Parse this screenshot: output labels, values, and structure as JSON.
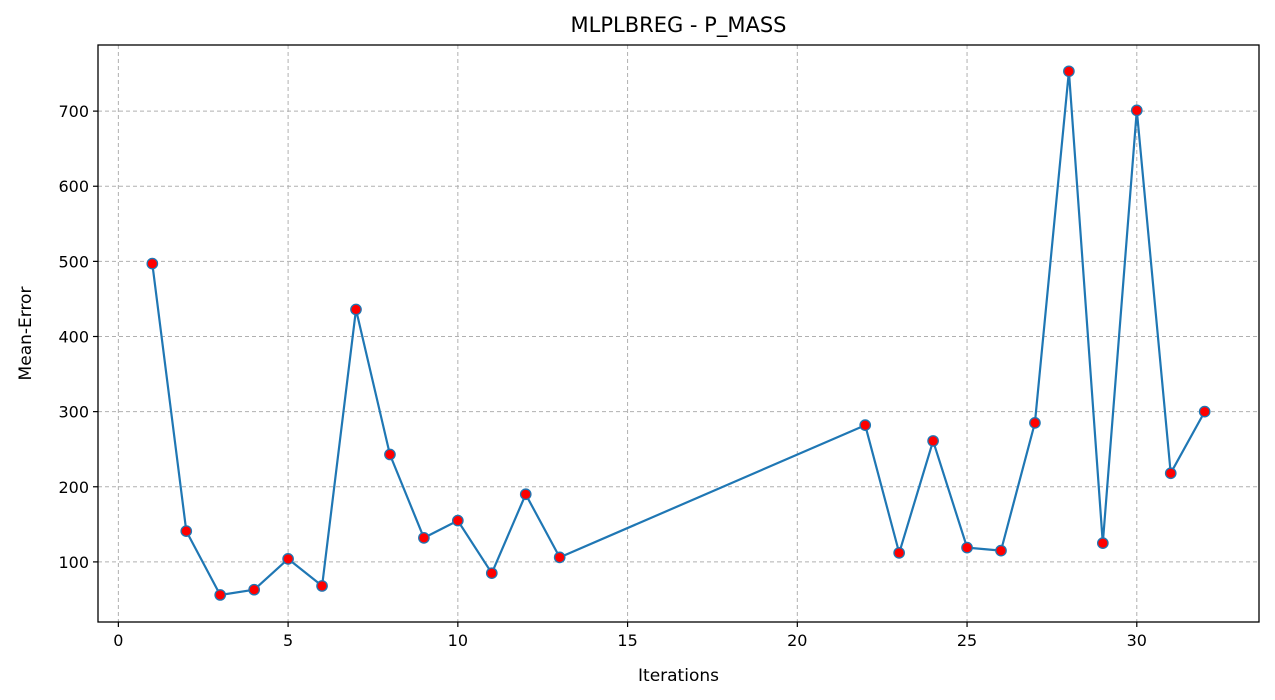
{
  "chart_data": {
    "type": "line",
    "title": "MLPLBREG - P_MASS",
    "xlabel": "Iterations",
    "ylabel": "Mean-Error",
    "xlim": [
      -0.6,
      33.6
    ],
    "ylim": [
      20,
      788
    ],
    "x_ticks": [
      0,
      5,
      10,
      15,
      20,
      25,
      30
    ],
    "y_ticks": [
      100,
      200,
      300,
      400,
      500,
      600,
      700
    ],
    "grid": true,
    "series": [
      {
        "x": [
          1,
          2,
          3,
          4,
          5,
          6,
          7,
          8,
          9,
          10,
          11,
          12,
          13,
          22,
          23,
          24,
          25,
          26,
          27,
          28,
          29,
          30,
          31,
          32
        ],
        "values": [
          497,
          141,
          56,
          63,
          104,
          68,
          436,
          243,
          132,
          155,
          85,
          190,
          106,
          282,
          112,
          261,
          119,
          115,
          285,
          753,
          125,
          701,
          218,
          300
        ],
        "line_color": "#1f77b4",
        "marker_face_color": "#ff0000",
        "marker_edge_color": "#1f77b4"
      }
    ]
  }
}
